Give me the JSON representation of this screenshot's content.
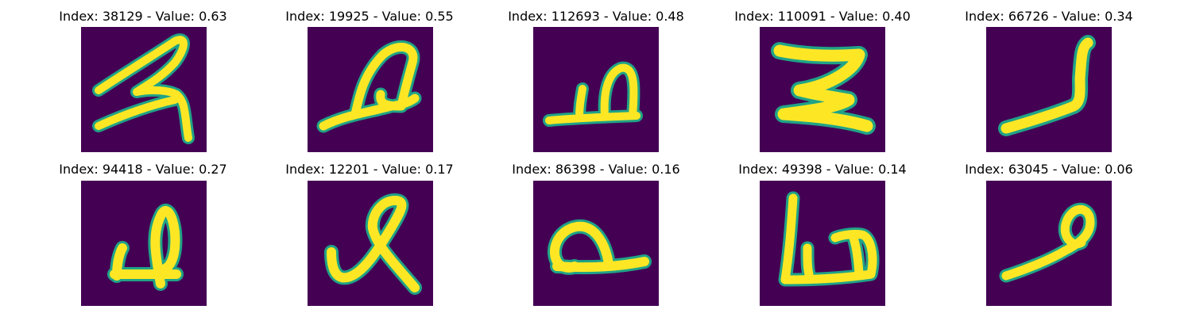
{
  "colors": {
    "background": "#440154",
    "stroke_core": "#fde725",
    "stroke_edge": "#20a387",
    "stroke_mid": "#5ec962"
  },
  "panels": [
    {
      "title": "Index: 38129 - Value: 0.63",
      "glyph": "glyph-38129"
    },
    {
      "title": "Index: 19925 - Value: 0.55",
      "glyph": "glyph-19925"
    },
    {
      "title": "Index: 112693 - Value: 0.48",
      "glyph": "glyph-112693"
    },
    {
      "title": "Index: 110091 - Value: 0.40",
      "glyph": "glyph-110091"
    },
    {
      "title": "Index: 66726 - Value: 0.34",
      "glyph": "glyph-66726"
    },
    {
      "title": "Index: 94418 - Value: 0.27",
      "glyph": "glyph-94418"
    },
    {
      "title": "Index: 12201 - Value: 0.17",
      "glyph": "glyph-12201"
    },
    {
      "title": "Index: 86398 - Value: 0.16",
      "glyph": "glyph-86398"
    },
    {
      "title": "Index: 49398 - Value: 0.14",
      "glyph": "glyph-49398"
    },
    {
      "title": "Index: 63045 - Value: 0.06",
      "glyph": "glyph-63045"
    }
  ]
}
